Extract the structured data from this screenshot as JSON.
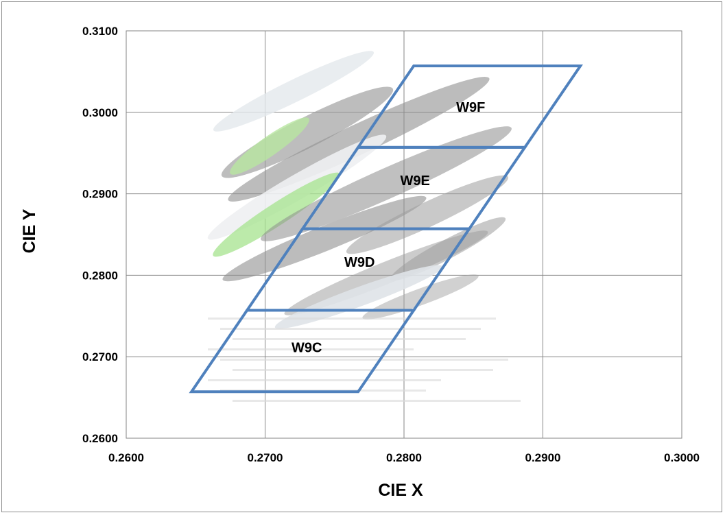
{
  "chart_data": {
    "type": "scatter",
    "title": "",
    "xlabel": "CIE  X",
    "ylabel": "CIE  Y",
    "xlim": [
      0.26,
      0.3
    ],
    "ylim": [
      0.26,
      0.31
    ],
    "x_ticks": [
      "0.2600",
      "0.2700",
      "0.2800",
      "0.2900",
      "0.3000"
    ],
    "y_ticks": [
      "0.2600",
      "0.2700",
      "0.2800",
      "0.2900",
      "0.3000",
      "0.3100"
    ],
    "grid": true,
    "bin_color": "#4f81bd",
    "bins": [
      {
        "name": "W9C",
        "label_at": [
          0.273,
          0.271
        ],
        "corners": [
          [
            0.2647,
            0.2657
          ],
          [
            0.2767,
            0.2657
          ],
          [
            0.2807,
            0.2757
          ],
          [
            0.2687,
            0.2757
          ]
        ]
      },
      {
        "name": "W9D",
        "label_at": [
          0.2768,
          0.2815
        ],
        "corners": [
          [
            0.2687,
            0.2757
          ],
          [
            0.2807,
            0.2757
          ],
          [
            0.2847,
            0.2857
          ],
          [
            0.2727,
            0.2857
          ]
        ]
      },
      {
        "name": "W9E",
        "label_at": [
          0.2808,
          0.2915
        ],
        "corners": [
          [
            0.2727,
            0.2857
          ],
          [
            0.2847,
            0.2857
          ],
          [
            0.2887,
            0.2957
          ],
          [
            0.2767,
            0.2957
          ]
        ]
      },
      {
        "name": "W9F",
        "label_at": [
          0.2848,
          0.3005
        ],
        "corners": [
          [
            0.2767,
            0.2957
          ],
          [
            0.2887,
            0.2957
          ],
          [
            0.2927,
            0.3057
          ],
          [
            0.2807,
            0.3057
          ]
        ]
      }
    ]
  }
}
